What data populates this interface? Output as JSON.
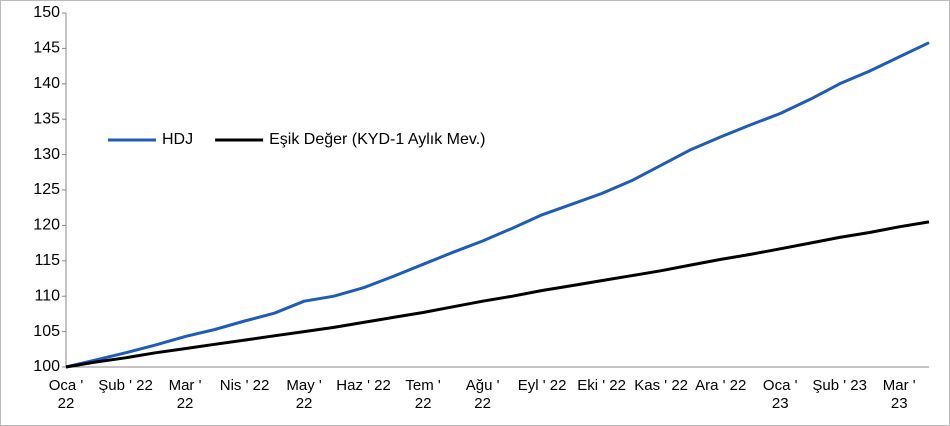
{
  "chart_data": {
    "type": "line",
    "categories": [
      "Oca '\n22",
      null,
      "Şub ' 22",
      null,
      "Mar '\n22",
      null,
      "Nis ' 22",
      null,
      "May '\n22",
      null,
      "Haz ' 22",
      null,
      "Tem '\n22",
      null,
      "Ağu '\n22",
      null,
      "Eyl ' 22",
      null,
      "Eki ' 22",
      null,
      "Kas ' 22",
      null,
      "Ara ' 22",
      null,
      "Oca '\n23",
      null,
      "Şub ' 23",
      null,
      "Mar '\n23",
      null
    ],
    "series": [
      {
        "name": "HDJ",
        "color": "#1f5cb8",
        "values": [
          100,
          101,
          102,
          103.1,
          104.3,
          105.3,
          106.5,
          107.6,
          109.3,
          110,
          111.2,
          112.8,
          114.5,
          116.2,
          117.8,
          119.6,
          121.5,
          123,
          124.5,
          126.3,
          128.5,
          130.7,
          132.5,
          134.2,
          135.8,
          137.8,
          140,
          141.8,
          143.8,
          145.8
        ]
      },
      {
        "name": "Eşik Değer (KYD-1 Aylık Mev.)",
        "color": "#000000",
        "values": [
          100,
          100.7,
          101.3,
          102,
          102.6,
          103.2,
          103.8,
          104.4,
          105,
          105.6,
          106.3,
          107,
          107.7,
          108.5,
          109.3,
          110,
          110.8,
          111.5,
          112.2,
          112.9,
          113.6,
          114.4,
          115.2,
          115.9,
          116.7,
          117.5,
          118.3,
          119,
          119.8,
          120.5
        ]
      }
    ],
    "ylim": [
      100,
      150
    ],
    "yticks": [
      100,
      105,
      110,
      115,
      120,
      125,
      130,
      135,
      140,
      145,
      150
    ],
    "grid": false,
    "legend": "upper left"
  }
}
